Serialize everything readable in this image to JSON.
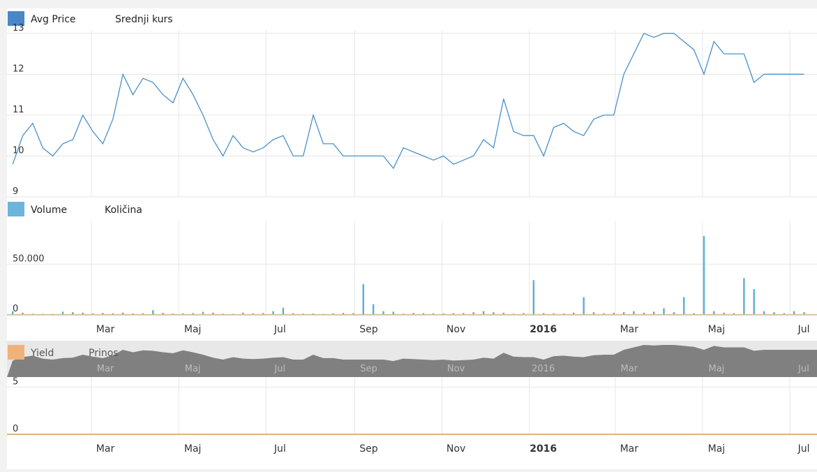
{
  "colors": {
    "price_line": "#4a90c8",
    "price_swatch": "#4a87c8",
    "volume_bar": "#5aaed6",
    "volume_swatch": "#6bb5dc",
    "yield_swatch": "#f0b27a",
    "yield_axis": "#c8a050",
    "navigator_fill": "#808080",
    "grid": "#e6e6e6",
    "background": "#ffffff"
  },
  "chart_data": [
    {
      "type": "line",
      "legend": [
        "Avg Price",
        "Srednji kurs"
      ],
      "ylim": [
        9,
        13
      ],
      "y_ticks": [
        "9",
        "10",
        "11",
        "12",
        "13"
      ],
      "x_ticks": [
        "Mar",
        "Maj",
        "Jul",
        "Sep",
        "Nov",
        "2016",
        "Mar",
        "Maj",
        "Jul"
      ],
      "x": [
        "2015-01-05",
        "2015-01-12",
        "2015-01-19",
        "2015-01-26",
        "2015-02-02",
        "2015-02-09",
        "2015-02-16",
        "2015-02-23",
        "2015-03-02",
        "2015-03-09",
        "2015-03-16",
        "2015-03-23",
        "2015-03-30",
        "2015-04-06",
        "2015-04-13",
        "2015-04-20",
        "2015-04-27",
        "2015-05-04",
        "2015-05-11",
        "2015-05-18",
        "2015-05-25",
        "2015-06-01",
        "2015-06-08",
        "2015-06-15",
        "2015-06-22",
        "2015-06-29",
        "2015-07-06",
        "2015-07-13",
        "2015-07-20",
        "2015-07-27",
        "2015-08-03",
        "2015-08-10",
        "2015-08-17",
        "2015-08-24",
        "2015-08-31",
        "2015-09-07",
        "2015-09-14",
        "2015-09-21",
        "2015-09-28",
        "2015-10-05",
        "2015-10-12",
        "2015-10-19",
        "2015-10-26",
        "2015-11-02",
        "2015-11-09",
        "2015-11-16",
        "2015-11-23",
        "2015-11-30",
        "2015-12-07",
        "2015-12-14",
        "2015-12-21",
        "2015-12-28",
        "2016-01-04",
        "2016-01-11",
        "2016-01-18",
        "2016-01-25",
        "2016-02-01",
        "2016-02-08",
        "2016-02-15",
        "2016-02-22",
        "2016-02-29",
        "2016-03-07",
        "2016-03-14",
        "2016-03-21",
        "2016-03-28",
        "2016-04-04",
        "2016-04-11",
        "2016-04-18",
        "2016-04-25",
        "2016-05-02",
        "2016-05-09",
        "2016-05-16",
        "2016-05-23",
        "2016-05-30",
        "2016-06-06",
        "2016-06-13",
        "2016-06-20",
        "2016-06-27",
        "2016-07-04",
        "2016-07-11"
      ],
      "values": [
        9.8,
        10.5,
        10.8,
        10.2,
        10.0,
        10.3,
        10.4,
        11.0,
        10.6,
        10.3,
        10.9,
        12.0,
        11.5,
        11.9,
        11.8,
        11.5,
        11.3,
        11.9,
        11.5,
        11.0,
        10.4,
        10.0,
        10.5,
        10.2,
        10.1,
        10.2,
        10.4,
        10.5,
        10.0,
        10.0,
        11.0,
        10.3,
        10.3,
        10.0,
        10.0,
        10.0,
        10.0,
        10.0,
        9.7,
        10.2,
        10.1,
        10.0,
        9.9,
        10.0,
        9.8,
        9.9,
        10.0,
        10.4,
        10.2,
        11.4,
        10.6,
        10.5,
        10.5,
        10.0,
        10.7,
        10.8,
        10.6,
        10.5,
        10.9,
        11.0,
        11.0,
        12.0,
        12.5,
        13.0,
        12.9,
        13.0,
        13.0,
        12.8,
        12.6,
        12.0,
        12.8,
        12.5,
        12.5,
        12.5,
        11.8,
        12.0,
        12.0,
        12.0,
        12.0,
        12.0
      ]
    },
    {
      "type": "bar",
      "legend": [
        "Volume",
        "Količina"
      ],
      "y_ticks": [
        "0",
        "50.000"
      ],
      "ylim": [
        0,
        100000
      ],
      "x_ticks": [
        "Mar",
        "Maj",
        "Jul",
        "Sep",
        "Nov",
        "2016",
        "Mar",
        "Maj",
        "Jul"
      ],
      "x": [
        "2015-01-05",
        "2015-01-12",
        "2015-01-19",
        "2015-01-26",
        "2015-02-02",
        "2015-02-09",
        "2015-02-16",
        "2015-02-23",
        "2015-03-02",
        "2015-03-09",
        "2015-03-16",
        "2015-03-23",
        "2015-03-30",
        "2015-04-06",
        "2015-04-13",
        "2015-04-20",
        "2015-04-27",
        "2015-05-04",
        "2015-05-11",
        "2015-05-18",
        "2015-05-25",
        "2015-06-01",
        "2015-06-08",
        "2015-06-15",
        "2015-06-22",
        "2015-06-29",
        "2015-07-06",
        "2015-07-13",
        "2015-07-20",
        "2015-07-27",
        "2015-08-03",
        "2015-08-10",
        "2015-08-17",
        "2015-08-24",
        "2015-08-31",
        "2015-09-07",
        "2015-09-14",
        "2015-09-21",
        "2015-09-28",
        "2015-10-05",
        "2015-10-12",
        "2015-10-19",
        "2015-10-26",
        "2015-11-02",
        "2015-11-09",
        "2015-11-16",
        "2015-11-23",
        "2015-11-30",
        "2015-12-07",
        "2015-12-14",
        "2015-12-21",
        "2015-12-28",
        "2016-01-04",
        "2016-01-11",
        "2016-01-18",
        "2016-01-25",
        "2016-02-01",
        "2016-02-08",
        "2016-02-15",
        "2016-02-22",
        "2016-02-29",
        "2016-03-07",
        "2016-03-14",
        "2016-03-21",
        "2016-03-28",
        "2016-04-04",
        "2016-04-11",
        "2016-04-18",
        "2016-04-25",
        "2016-05-02",
        "2016-05-09",
        "2016-05-16",
        "2016-05-23",
        "2016-05-30",
        "2016-06-06",
        "2016-06-13",
        "2016-06-20",
        "2016-06-27",
        "2016-07-04",
        "2016-07-11"
      ],
      "values": [
        3000,
        1500,
        500,
        300,
        200,
        2500,
        2000,
        1500,
        800,
        1200,
        900,
        1600,
        700,
        1000,
        4000,
        1300,
        600,
        900,
        1100,
        2400,
        1500,
        500,
        400,
        1500,
        800,
        1200,
        3000,
        6500,
        1000,
        600,
        700,
        300,
        800,
        1300,
        1100,
        30000,
        10000,
        3000,
        2500,
        500,
        1300,
        1000,
        900,
        700,
        1000,
        1200,
        2000,
        3000,
        2000,
        1500,
        500,
        1100,
        34000,
        1000,
        900,
        700,
        1600,
        17000,
        2000,
        1000,
        1500,
        2000,
        3000,
        1500,
        2500,
        6000,
        2000,
        17000,
        1000,
        78000,
        3000,
        1500,
        1000,
        36000,
        25000,
        3000,
        2000,
        1000,
        3000,
        2000
      ]
    },
    {
      "type": "line",
      "legend": [
        "Yield",
        "Prinos"
      ],
      "y_ticks": [
        "0",
        "5"
      ],
      "ylim": [
        0,
        10
      ],
      "x_ticks": [
        "Mar",
        "Maj",
        "Jul",
        "Sep",
        "Nov",
        "2016",
        "Mar",
        "Maj",
        "Jul"
      ],
      "x": [
        "2015-01-05",
        "2016-07-11"
      ],
      "values": [
        0,
        0
      ]
    }
  ],
  "navigator": {
    "x_ticks": [
      "Mar",
      "Maj",
      "Jul",
      "Sep",
      "Nov",
      "2016",
      "Mar",
      "Maj",
      "Jul"
    ]
  }
}
